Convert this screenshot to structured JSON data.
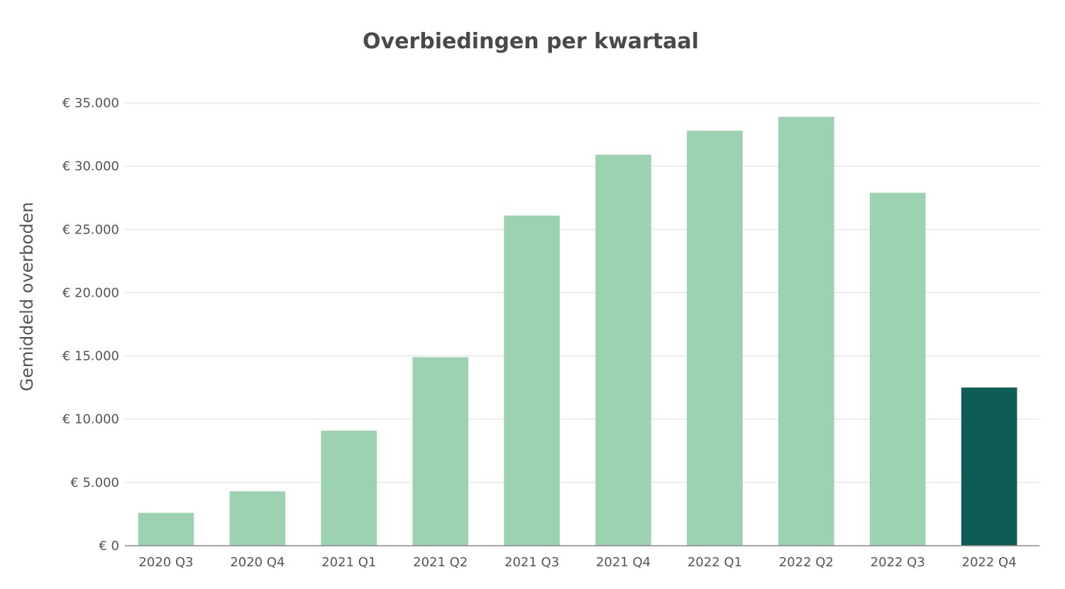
{
  "chart_data": {
    "type": "bar",
    "title": "Overbiedingen per kwartaal",
    "xlabel": "",
    "ylabel": "Gemiddeld overboden",
    "categories": [
      "2020 Q3",
      "2020 Q4",
      "2021 Q1",
      "2021 Q2",
      "2021 Q3",
      "2021 Q4",
      "2022 Q1",
      "2022 Q2",
      "2022 Q3",
      "2022 Q4"
    ],
    "values": [
      2600,
      4300,
      9100,
      14900,
      26100,
      30900,
      32800,
      33900,
      27900,
      12500
    ],
    "ylim": [
      0,
      35000
    ],
    "y_ticks": [
      0,
      5000,
      10000,
      15000,
      20000,
      25000,
      30000,
      35000
    ],
    "y_tick_labels": [
      "€ 0",
      "€ 5.000",
      "€ 10.000",
      "€ 15.000",
      "€ 20.000",
      "€ 25.000",
      "€ 30.000",
      "€ 35.000"
    ],
    "grid": true,
    "legend": "none",
    "colors": {
      "bar": "#9dd2b1",
      "highlight_bar": "#0f5c57",
      "title": "#4a4a4a",
      "text": "#555555",
      "grid": "#dddddd"
    },
    "highlight_index": 9
  }
}
